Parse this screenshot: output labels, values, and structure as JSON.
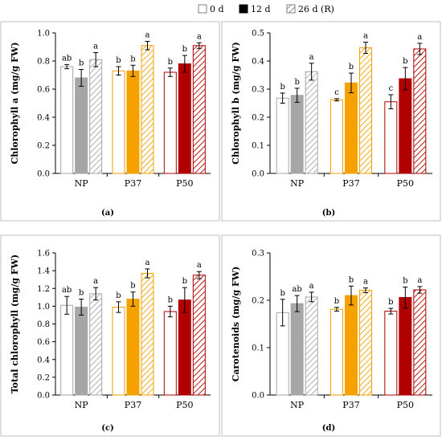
{
  "legend": {
    "items": [
      {
        "label": "0 d",
        "style": "open"
      },
      {
        "label": "12 d",
        "style": "solid"
      },
      {
        "label": "26 d (R)",
        "style": "hatched"
      }
    ]
  },
  "colors": {
    "NP": "#a6a6a6",
    "P37": "#f5a100",
    "P50": "#b00000",
    "legend_solid": "#000000",
    "legend_hatch": "#7f7f7f"
  },
  "chart_data": [
    {
      "type": "bar",
      "panel_label": "(a)",
      "ylabel": "Chlorophyll a (mg/g FW)",
      "categories": [
        "NP",
        "P37",
        "P50"
      ],
      "series": [
        {
          "name": "0 d",
          "values": [
            0.76,
            0.73,
            0.72
          ],
          "errors": [
            0.015,
            0.03,
            0.03
          ],
          "letters": [
            "ab",
            "b",
            "b"
          ]
        },
        {
          "name": "12 d",
          "values": [
            0.68,
            0.73,
            0.78
          ],
          "errors": [
            0.06,
            0.04,
            0.06
          ],
          "letters": [
            "b",
            "b",
            "b"
          ]
        },
        {
          "name": "26 d (R)",
          "values": [
            0.81,
            0.91,
            0.91
          ],
          "errors": [
            0.05,
            0.03,
            0.02
          ],
          "letters": [
            "a",
            "a",
            "a"
          ]
        }
      ],
      "ylim": [
        0,
        1.0
      ],
      "yticks": [
        0.0,
        0.2,
        0.4,
        0.6,
        0.8,
        1.0
      ],
      "ytick_labels": [
        "0.0",
        "0.2",
        "0.4",
        "0.6",
        "0.8",
        "1.0"
      ],
      "grid": false
    },
    {
      "type": "bar",
      "panel_label": "(b)",
      "ylabel": "Chlorophyll b (mg/g FW)",
      "categories": [
        "NP",
        "P37",
        "P50"
      ],
      "series": [
        {
          "name": "0 d",
          "values": [
            0.268,
            0.262,
            0.255
          ],
          "errors": [
            0.018,
            0.004,
            0.025
          ],
          "letters": [
            "b",
            "c",
            "c"
          ]
        },
        {
          "name": "12 d",
          "values": [
            0.278,
            0.322,
            0.337
          ],
          "errors": [
            0.025,
            0.035,
            0.04
          ],
          "letters": [
            "b",
            "b",
            "b"
          ]
        },
        {
          "name": "26 d (R)",
          "values": [
            0.362,
            0.447,
            0.443
          ],
          "errors": [
            0.03,
            0.02,
            0.02
          ],
          "letters": [
            "a",
            "a",
            "a"
          ]
        }
      ],
      "ylim": [
        0,
        0.5
      ],
      "yticks": [
        0.0,
        0.1,
        0.2,
        0.3,
        0.4,
        0.5
      ],
      "ytick_labels": [
        "0.0",
        "0.1",
        "0.2",
        "0.3",
        "0.4",
        "0.5"
      ],
      "grid": false
    },
    {
      "type": "bar",
      "panel_label": "(c)",
      "ylabel": "Total chlorophyll (mg/g FW)",
      "categories": [
        "NP",
        "P37",
        "P50"
      ],
      "series": [
        {
          "name": "0 d",
          "values": [
            1.01,
            0.99,
            0.94
          ],
          "errors": [
            0.1,
            0.06,
            0.06
          ],
          "letters": [
            "ab",
            "b",
            "b"
          ]
        },
        {
          "name": "12 d",
          "values": [
            0.99,
            1.08,
            1.07
          ],
          "errors": [
            0.09,
            0.08,
            0.14
          ],
          "letters": [
            "b",
            "b",
            "b"
          ]
        },
        {
          "name": "26 d (R)",
          "values": [
            1.14,
            1.37,
            1.35
          ],
          "errors": [
            0.07,
            0.05,
            0.04
          ],
          "letters": [
            "a",
            "a",
            "a"
          ]
        }
      ],
      "ylim": [
        0,
        1.6
      ],
      "yticks": [
        0.0,
        0.2,
        0.4,
        0.6,
        0.8,
        1.0,
        1.2,
        1.4,
        1.6
      ],
      "ytick_labels": [
        "0.0",
        "0.2",
        "0.4",
        "0.6",
        "0.8",
        "1.0",
        "1.2",
        "1.4",
        "1.6"
      ],
      "grid": false
    },
    {
      "type": "bar",
      "panel_label": "(d)",
      "ylabel": "Carotenoids (mg/g FW)",
      "categories": [
        "NP",
        "P37",
        "P50"
      ],
      "series": [
        {
          "name": "0 d",
          "values": [
            0.174,
            0.181,
            0.177
          ],
          "errors": [
            0.028,
            0.004,
            0.006
          ],
          "letters": [
            "b",
            "b",
            "b"
          ]
        },
        {
          "name": "12 d",
          "values": [
            0.193,
            0.21,
            0.206
          ],
          "errors": [
            0.017,
            0.02,
            0.022
          ],
          "letters": [
            "ab",
            "b",
            "b"
          ]
        },
        {
          "name": "26 d (R)",
          "values": [
            0.207,
            0.221,
            0.222
          ],
          "errors": [
            0.01,
            0.005,
            0.007
          ],
          "letters": [
            "a",
            "a",
            "a"
          ]
        }
      ],
      "ylim": [
        0,
        0.3
      ],
      "yticks": [
        0.0,
        0.1,
        0.2,
        0.3
      ],
      "ytick_labels": [
        "0.0",
        "0.1",
        "0.2",
        "0.3"
      ],
      "grid": false
    }
  ]
}
